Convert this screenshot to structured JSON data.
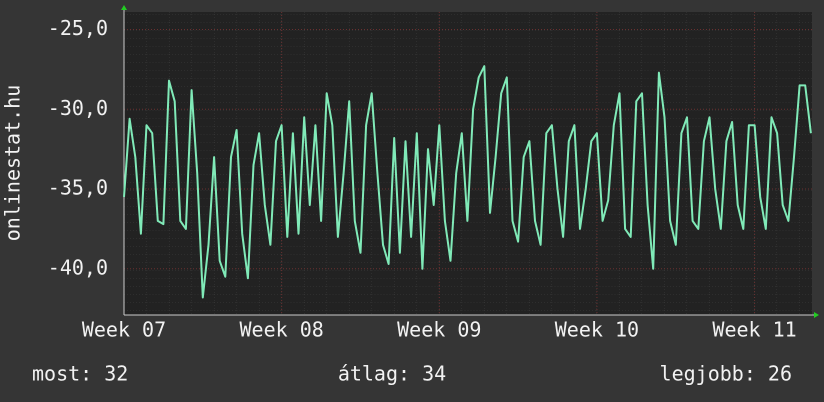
{
  "chart_data": {
    "type": "line",
    "y_label": "onlinestat.hu",
    "x": [
      0,
      0.25,
      0.5,
      0.75,
      1,
      1.25,
      1.5,
      1.75,
      2,
      2.25,
      2.5,
      2.75,
      3,
      3.25,
      3.5,
      3.75,
      4,
      4.25,
      4.5,
      4.75,
      5,
      5.25,
      5.5,
      5.75,
      6,
      6.25,
      6.5,
      6.75,
      7,
      7.25,
      7.5,
      7.75,
      8,
      8.25,
      8.5,
      8.75,
      9,
      9.25,
      9.5,
      9.75,
      10,
      10.25,
      10.5,
      10.75,
      11,
      11.25,
      11.5,
      11.75,
      12,
      12.25,
      12.5,
      12.75,
      13,
      13.25,
      13.5,
      13.75,
      14,
      14.25,
      14.5,
      14.75,
      15,
      15.25,
      15.5,
      15.75,
      16,
      16.25,
      16.5,
      16.75,
      17,
      17.25,
      17.5,
      17.75,
      18,
      18.25,
      18.5,
      18.75,
      19,
      19.25,
      19.5,
      19.75,
      20,
      20.25,
      20.5,
      20.75,
      21,
      21.25,
      21.5,
      21.75,
      22,
      22.25,
      22.5,
      22.75,
      23,
      23.25,
      23.5,
      23.75,
      24,
      24.25,
      24.5,
      24.75,
      25,
      25.25,
      25.5,
      25.75,
      26,
      26.25,
      26.5,
      26.75,
      27,
      27.25,
      27.5,
      27.75,
      28,
      28.25,
      28.5,
      28.75,
      29,
      29.25,
      29.5,
      29.75,
      30,
      30.25,
      30.5
    ],
    "series": [
      {
        "color": "#80eab8",
        "values": [
          -35.5,
          -30.6,
          -33,
          -37.8,
          -31,
          -31.5,
          -37,
          -37.2,
          -28.2,
          -29.5,
          -37,
          -37.5,
          -28.8,
          -34,
          -41.8,
          -38.5,
          -33,
          -39.5,
          -40.5,
          -33,
          -31.3,
          -37.8,
          -40.6,
          -33.5,
          -31.5,
          -36,
          -38.5,
          -32,
          -31,
          -38,
          -31.5,
          -37.8,
          -30.5,
          -36,
          -31,
          -37,
          -29,
          -31,
          -38,
          -34,
          -29.5,
          -37,
          -39,
          -31,
          -29,
          -34,
          -38.5,
          -39.7,
          -31.8,
          -39,
          -32,
          -38,
          -31.5,
          -40,
          -32.5,
          -36,
          -31,
          -37,
          -39.5,
          -34,
          -31.5,
          -37,
          -30,
          -28,
          -27.3,
          -36.5,
          -33,
          -29,
          -28,
          -37,
          -38.3,
          -33,
          -32,
          -37,
          -38.5,
          -31.5,
          -31,
          -35,
          -38,
          -32,
          -31,
          -37.5,
          -35,
          -32,
          -31.5,
          -37,
          -35.7,
          -31,
          -29,
          -37.5,
          -38,
          -29.5,
          -29,
          -36,
          -40,
          -27.7,
          -30.5,
          -37,
          -38.5,
          -31.5,
          -30.5,
          -37,
          -37.5,
          -32,
          -30.5,
          -35,
          -37.5,
          -32,
          -30.8,
          -36,
          -37.5,
          -31,
          -31,
          -35.5,
          -37.5,
          -30.5,
          -31.5,
          -36,
          -37,
          -33,
          -28.5,
          -28.5,
          -31.5
        ]
      }
    ],
    "xlim": [
      0,
      30.55
    ],
    "xticks": [
      {
        "value": 0,
        "label": "Week 07"
      },
      {
        "value": 7,
        "label": "Week 08"
      },
      {
        "value": 14,
        "label": "Week 09"
      },
      {
        "value": 21,
        "label": "Week 10"
      },
      {
        "value": 28,
        "label": "Week 11"
      }
    ],
    "ylim": [
      -42.9,
      -23.9
    ],
    "yticks": [
      {
        "value": -25,
        "label": "-25,0"
      },
      {
        "value": -30,
        "label": "-30,0"
      },
      {
        "value": -35,
        "label": "-35,0"
      },
      {
        "value": -40,
        "label": "-40,0"
      }
    ],
    "grid": true,
    "footer": [
      "most: 32",
      "átlag: 34",
      "legjobb: 26"
    ]
  }
}
